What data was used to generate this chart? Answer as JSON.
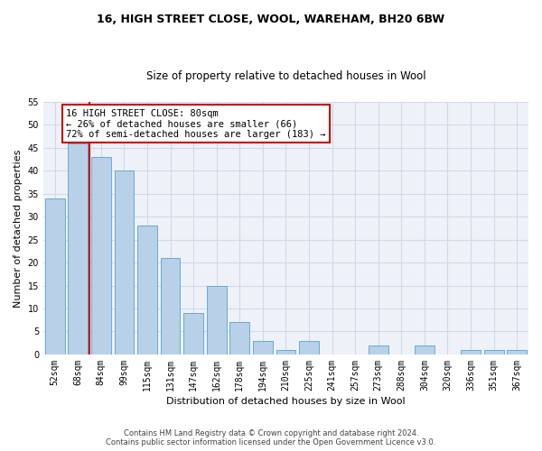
{
  "title1": "16, HIGH STREET CLOSE, WOOL, WAREHAM, BH20 6BW",
  "title2": "Size of property relative to detached houses in Wool",
  "xlabel": "Distribution of detached houses by size in Wool",
  "ylabel": "Number of detached properties",
  "categories": [
    "52sqm",
    "68sqm",
    "84sqm",
    "99sqm",
    "115sqm",
    "131sqm",
    "147sqm",
    "162sqm",
    "178sqm",
    "194sqm",
    "210sqm",
    "225sqm",
    "241sqm",
    "257sqm",
    "273sqm",
    "288sqm",
    "304sqm",
    "320sqm",
    "336sqm",
    "351sqm",
    "367sqm"
  ],
  "values": [
    34,
    46,
    43,
    40,
    28,
    21,
    9,
    15,
    7,
    3,
    1,
    3,
    0,
    0,
    2,
    0,
    2,
    0,
    1,
    1,
    1
  ],
  "bar_color": "#b8d0e8",
  "bar_edge_color": "#6aaad4",
  "vline_color": "#cc0000",
  "annotation_line1": "16 HIGH STREET CLOSE: 80sqm",
  "annotation_line2": "← 26% of detached houses are smaller (66)",
  "annotation_line3": "72% of semi-detached houses are larger (183) →",
  "footer1": "Contains HM Land Registry data © Crown copyright and database right 2024.",
  "footer2": "Contains public sector information licensed under the Open Government Licence v3.0.",
  "ylim": [
    0,
    55
  ],
  "yticks": [
    0,
    5,
    10,
    15,
    20,
    25,
    30,
    35,
    40,
    45,
    50,
    55
  ],
  "grid_color": "#d0d8e8",
  "bg_color": "#eef2f8",
  "title1_fontsize": 9,
  "title2_fontsize": 8.5,
  "ylabel_fontsize": 8,
  "xlabel_fontsize": 8,
  "tick_fontsize": 7,
  "footer_fontsize": 6,
  "ann_fontsize": 7.5
}
